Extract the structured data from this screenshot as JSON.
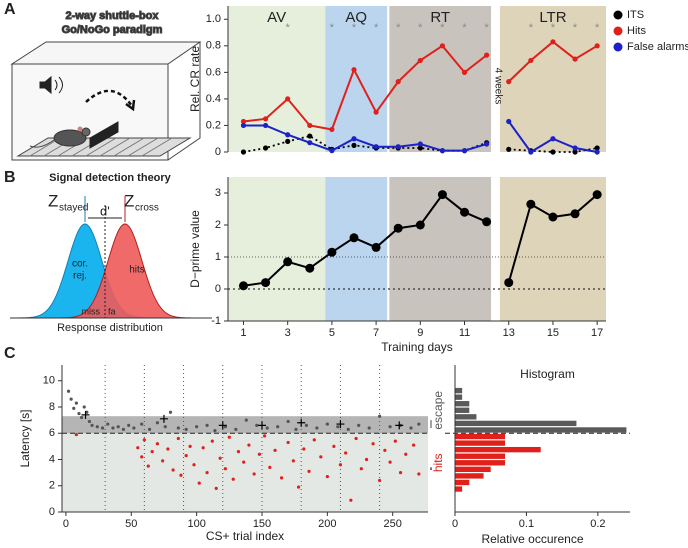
{
  "panel_labels": [
    "A",
    "B",
    "C"
  ],
  "illustrations": {
    "shuttle_box": {
      "title": [
        "2-way shuttle-box",
        "Go/NoGo paradigm"
      ]
    },
    "signal_detection": {
      "title": "Signal detection theory",
      "z_stayed": "Z",
      "z_stayed_sub": "stayed",
      "z_cross": "Z",
      "z_cross_sub": "cross",
      "d_prime": "d'",
      "correct_rejection": [
        "cor.",
        "rej."
      ],
      "hits": "hits",
      "miss": "miss",
      "false_alarm": "fa",
      "xlabel": "Response distribution"
    }
  },
  "chart_data": [
    {
      "type": "line",
      "ylabel": "Rel. CR rate",
      "x": [
        1,
        2,
        3,
        4,
        5,
        6,
        7,
        8,
        9,
        10,
        11,
        12,
        null,
        13,
        14,
        15,
        16,
        17
      ],
      "xlim": [
        0.3,
        17.4
      ],
      "ylim": [
        0,
        1.1
      ],
      "yticks": [
        0,
        0.2,
        0.4,
        0.6,
        0.8,
        {
          "value": 1,
          "label": "1.0"
        }
      ],
      "phases": [
        {
          "label": "AV",
          "range": [
            0.3,
            4.7
          ],
          "color": "#e6efdc"
        },
        {
          "label": "AQ",
          "range": [
            4.7,
            7.5
          ],
          "color": "#bcd5ee"
        },
        {
          "label": "RT",
          "range": [
            7.6,
            12.2
          ],
          "color": "#c9c3be"
        },
        {
          "label": "LTR",
          "range": [
            12.6,
            17.4
          ],
          "color": "#ded4b9"
        }
      ],
      "significance": {
        "label": "*",
        "x": [
          3,
          5,
          6,
          7,
          8,
          9,
          10,
          11,
          12,
          14,
          15,
          16,
          17
        ]
      },
      "annotations": [
        "4 weeks"
      ],
      "legend": "right",
      "series": [
        {
          "name": "ITS",
          "color": "#000000",
          "style": "dotted",
          "values": [
            0,
            0.03,
            0.08,
            0.12,
            0.02,
            0.05,
            0.03,
            0.03,
            0.03,
            0.01,
            0.01,
            0.07,
            null,
            0.02,
            0.01,
            0,
            0,
            0.03
          ]
        },
        {
          "name": "Hits",
          "color": "#e0201b",
          "style": "solid",
          "values": [
            0.23,
            0.25,
            0.4,
            0.2,
            0.17,
            0.62,
            0.3,
            0.53,
            0.69,
            0.8,
            0.6,
            0.73,
            null,
            0.53,
            0.69,
            0.83,
            0.7,
            0.8
          ]
        },
        {
          "name": "False alarms",
          "color": "#1a22c8",
          "style": "solid",
          "values": [
            0.2,
            0.2,
            0.13,
            0.07,
            0.01,
            0.1,
            0.04,
            0.04,
            0.06,
            0.01,
            0.01,
            0.06,
            null,
            0.23,
            0,
            0.1,
            0.03,
            0
          ]
        }
      ]
    },
    {
      "type": "line",
      "ylabel": "D−prime value",
      "xlabel": "Training days",
      "x": [
        1,
        2,
        3,
        4,
        5,
        6,
        7,
        8,
        9,
        10,
        11,
        12,
        null,
        13,
        14,
        15,
        16,
        17
      ],
      "xlim": [
        0.3,
        17.4
      ],
      "ylim": [
        -1,
        3.5
      ],
      "yticks": [
        -1,
        0,
        1,
        2,
        3
      ],
      "xticks": [
        1,
        3,
        5,
        7,
        9,
        11,
        13,
        15,
        17
      ],
      "phases": [
        {
          "range": [
            0.3,
            4.7
          ],
          "color": "#e6efdc"
        },
        {
          "range": [
            4.7,
            7.5
          ],
          "color": "#bcd5ee"
        },
        {
          "range": [
            7.6,
            12.2
          ],
          "color": "#c9c3be"
        },
        {
          "range": [
            12.6,
            17.4
          ],
          "color": "#ded4b9"
        }
      ],
      "reference_lines": [
        0,
        1
      ],
      "series": [
        {
          "color": "#000000",
          "style": "solid",
          "values": [
            0.1,
            0.2,
            0.85,
            0.65,
            1.15,
            1.6,
            1.3,
            1.9,
            2.0,
            2.95,
            2.4,
            2.1,
            null,
            0.2,
            2.65,
            2.25,
            2.35,
            2.95
          ]
        }
      ]
    },
    {
      "type": "scatter",
      "xlabel": "CS+ trial index",
      "ylabel": "Latency [s]",
      "xlim": [
        -3,
        277
      ],
      "ylim": [
        0,
        11.2
      ],
      "xticks": [
        0,
        50,
        100,
        150,
        200,
        250
      ],
      "yticks": [
        0,
        2,
        4,
        6,
        8,
        10
      ],
      "bands": [
        {
          "range": [
            0,
            6
          ],
          "color": "#e4e8e4"
        },
        {
          "range": [
            6,
            7.3
          ],
          "color": "#b5b5b5"
        }
      ],
      "threshold": 6,
      "block_lines": [
        30,
        60,
        90,
        120,
        150,
        180,
        210,
        240
      ],
      "series": [
        {
          "color": "#555555",
          "marker": "dot",
          "x": [
            2,
            4,
            6,
            8,
            10,
            12,
            14,
            16,
            18,
            20,
            24,
            28,
            32,
            36,
            40,
            44,
            48,
            52,
            58,
            64,
            70,
            76,
            80,
            86,
            92,
            100,
            108,
            114,
            122,
            130,
            138,
            146,
            154,
            162,
            170,
            176,
            184,
            192,
            200,
            208,
            216,
            224,
            232,
            240,
            248,
            256,
            264,
            270
          ],
          "values": [
            9.2,
            8.6,
            7.9,
            8.3,
            7.5,
            7.2,
            8.0,
            7.6,
            6.9,
            6.6,
            6.5,
            6.4,
            6.7,
            6.4,
            6.5,
            6.3,
            6.6,
            6.4,
            6.7,
            6.3,
            6.8,
            6.5,
            7.6,
            6.4,
            6.3,
            6.5,
            6.6,
            6.2,
            6.5,
            6.3,
            7.0,
            6.6,
            6.4,
            6.5,
            6.9,
            6.3,
            6.6,
            6.4,
            6.7,
            6.5,
            6.3,
            6.6,
            6.4,
            7.3,
            6.5,
            6.6,
            6.4,
            6.7
          ]
        },
        {
          "color": "#e0201b",
          "marker": "dot",
          "x": [
            8,
            55,
            58,
            60,
            63,
            66,
            70,
            74,
            78,
            82,
            86,
            88,
            92,
            95,
            98,
            102,
            105,
            108,
            112,
            115,
            118,
            122,
            125,
            128,
            132,
            136,
            140,
            144,
            148,
            152,
            156,
            160,
            165,
            170,
            174,
            178,
            182,
            186,
            190,
            195,
            200,
            205,
            210,
            214,
            218,
            222,
            226,
            230,
            235,
            240,
            244,
            248,
            252,
            256,
            260,
            266,
            270
          ],
          "values": [
            5.9,
            4.9,
            4.2,
            5.5,
            3.5,
            4.6,
            5.2,
            3.9,
            4.8,
            3.2,
            5.6,
            2.8,
            4.3,
            5.0,
            3.6,
            2.2,
            4.9,
            3.0,
            5.4,
            1.8,
            4.1,
            3.3,
            5.7,
            2.5,
            4.6,
            3.8,
            5.1,
            2.9,
            4.4,
            5.8,
            3.4,
            4.7,
            2.6,
            5.3,
            3.9,
            1.9,
            4.8,
            3.1,
            5.5,
            4.2,
            2.7,
            5.0,
            3.6,
            4.5,
            0.9,
            5.6,
            3.3,
            4.0,
            5.2,
            2.4,
            4.7,
            3.8,
            5.4,
            3.0,
            4.4,
            5.1,
            2.9
          ]
        },
        {
          "color": "#000000",
          "marker": "cross",
          "x": [
            15,
            75,
            120,
            150,
            180,
            210,
            255
          ],
          "values": [
            7.4,
            7.1,
            6.6,
            6.6,
            6.8,
            6.7,
            6.6
          ]
        }
      ]
    },
    {
      "type": "histogram",
      "orientation": "horizontal",
      "title": "Histogram",
      "xlabel": "Relative occurence",
      "xlim": [
        0,
        0.245
      ],
      "ylim": [
        0,
        11.2
      ],
      "xticks": [
        0,
        0.1,
        0.2
      ],
      "threshold": 6,
      "series": [
        {
          "name": "escape",
          "color": "#5a5a5a",
          "bins": [
            6,
            6.5,
            7,
            7.5,
            8,
            8.5,
            9,
            9.5
          ],
          "values": [
            0.24,
            0.17,
            0.03,
            0.02,
            0.02,
            0.01,
            0.01
          ]
        },
        {
          "name": "hits",
          "color": "#e0201b",
          "bins": [
            1.5,
            2,
            2.5,
            3,
            3.5,
            4,
            4.5,
            5,
            5.5,
            6
          ],
          "values": [
            0.01,
            0.02,
            0.04,
            0.05,
            0.07,
            0.07,
            0.12,
            0.07,
            0.07
          ]
        }
      ]
    }
  ]
}
